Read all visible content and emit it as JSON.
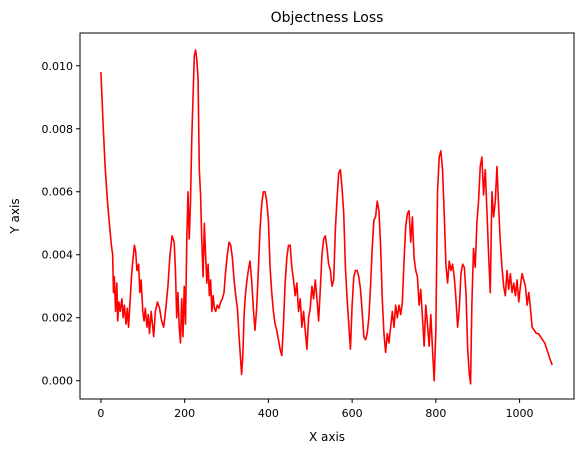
{
  "chart_data": {
    "type": "line",
    "title": "Objectness Loss",
    "xlabel": "X axis",
    "ylabel": "Y axis",
    "xlim": [
      -50,
      1130
    ],
    "ylim": [
      -0.00058,
      0.01104
    ],
    "x_ticks": [
      0,
      200,
      400,
      600,
      800,
      1000
    ],
    "x_tick_labels": [
      "0",
      "200",
      "400",
      "600",
      "800",
      "1000"
    ],
    "y_ticks": [
      0.0,
      0.002,
      0.004,
      0.006,
      0.008,
      0.01
    ],
    "y_tick_labels": [
      "0.000",
      "0.002",
      "0.004",
      "0.006",
      "0.008",
      "0.010"
    ],
    "grid": false,
    "series": [
      {
        "color": "#ff0000",
        "points": [
          [
            0,
            0.0098
          ],
          [
            5,
            0.0082
          ],
          [
            10,
            0.0068
          ],
          [
            15,
            0.0058
          ],
          [
            20,
            0.005
          ],
          [
            25,
            0.0043
          ],
          [
            28,
            0.004
          ],
          [
            30,
            0.0028
          ],
          [
            32,
            0.0033
          ],
          [
            35,
            0.0022
          ],
          [
            38,
            0.0031
          ],
          [
            40,
            0.0019
          ],
          [
            43,
            0.0025
          ],
          [
            46,
            0.0022
          ],
          [
            50,
            0.0026
          ],
          [
            53,
            0.002
          ],
          [
            56,
            0.0024
          ],
          [
            60,
            0.0018
          ],
          [
            63,
            0.0023
          ],
          [
            66,
            0.0017
          ],
          [
            70,
            0.0026
          ],
          [
            73,
            0.0033
          ],
          [
            76,
            0.0038
          ],
          [
            80,
            0.0043
          ],
          [
            83,
            0.0041
          ],
          [
            86,
            0.0035
          ],
          [
            90,
            0.0037
          ],
          [
            93,
            0.0028
          ],
          [
            96,
            0.0032
          ],
          [
            100,
            0.0022
          ],
          [
            103,
            0.0019
          ],
          [
            106,
            0.0023
          ],
          [
            110,
            0.0017
          ],
          [
            113,
            0.0021
          ],
          [
            116,
            0.0015
          ],
          [
            120,
            0.0022
          ],
          [
            123,
            0.0018
          ],
          [
            126,
            0.0014
          ],
          [
            130,
            0.0022
          ],
          [
            135,
            0.0025
          ],
          [
            140,
            0.0023
          ],
          [
            145,
            0.0019
          ],
          [
            150,
            0.0017
          ],
          [
            155,
            0.0023
          ],
          [
            160,
            0.003
          ],
          [
            165,
            0.004
          ],
          [
            170,
            0.0046
          ],
          [
            175,
            0.0044
          ],
          [
            178,
            0.0035
          ],
          [
            181,
            0.002
          ],
          [
            184,
            0.0028
          ],
          [
            187,
            0.0017
          ],
          [
            190,
            0.0012
          ],
          [
            193,
            0.0026
          ],
          [
            196,
            0.0014
          ],
          [
            199,
            0.003
          ],
          [
            202,
            0.0018
          ],
          [
            205,
            0.0044
          ],
          [
            208,
            0.006
          ],
          [
            211,
            0.0045
          ],
          [
            214,
            0.0057
          ],
          [
            217,
            0.0077
          ],
          [
            220,
            0.009
          ],
          [
            223,
            0.0103
          ],
          [
            226,
            0.0105
          ],
          [
            229,
            0.0102
          ],
          [
            232,
            0.0096
          ],
          [
            235,
            0.0067
          ],
          [
            238,
            0.0059
          ],
          [
            241,
            0.0044
          ],
          [
            244,
            0.0033
          ],
          [
            247,
            0.005
          ],
          [
            250,
            0.004
          ],
          [
            253,
            0.0031
          ],
          [
            256,
            0.0037
          ],
          [
            259,
            0.0027
          ],
          [
            262,
            0.0032
          ],
          [
            265,
            0.0022
          ],
          [
            268,
            0.0027
          ],
          [
            271,
            0.0023
          ],
          [
            274,
            0.0022
          ],
          [
            278,
            0.0024
          ],
          [
            282,
            0.0023
          ],
          [
            286,
            0.0025
          ],
          [
            290,
            0.0026
          ],
          [
            294,
            0.0028
          ],
          [
            298,
            0.0035
          ],
          [
            302,
            0.004
          ],
          [
            306,
            0.0044
          ],
          [
            310,
            0.0043
          ],
          [
            314,
            0.0039
          ],
          [
            318,
            0.0032
          ],
          [
            322,
            0.0027
          ],
          [
            326,
            0.0023
          ],
          [
            330,
            0.0014
          ],
          [
            333,
            0.0008
          ],
          [
            336,
            0.0002
          ],
          [
            339,
            0.0008
          ],
          [
            342,
            0.0021
          ],
          [
            345,
            0.0027
          ],
          [
            348,
            0.0031
          ],
          [
            352,
            0.0035
          ],
          [
            356,
            0.0038
          ],
          [
            360,
            0.0032
          ],
          [
            364,
            0.0023
          ],
          [
            368,
            0.0016
          ],
          [
            372,
            0.0023
          ],
          [
            376,
            0.0035
          ],
          [
            380,
            0.0048
          ],
          [
            384,
            0.0056
          ],
          [
            388,
            0.006
          ],
          [
            392,
            0.006
          ],
          [
            396,
            0.0057
          ],
          [
            400,
            0.0051
          ],
          [
            404,
            0.0036
          ],
          [
            408,
            0.0028
          ],
          [
            412,
            0.0022
          ],
          [
            416,
            0.0018
          ],
          [
            420,
            0.0016
          ],
          [
            424,
            0.0013
          ],
          [
            428,
            0.001
          ],
          [
            432,
            0.0008
          ],
          [
            436,
            0.0018
          ],
          [
            440,
            0.0031
          ],
          [
            444,
            0.0039
          ],
          [
            448,
            0.0043
          ],
          [
            452,
            0.0043
          ],
          [
            456,
            0.0036
          ],
          [
            460,
            0.0032
          ],
          [
            464,
            0.0027
          ],
          [
            468,
            0.0031
          ],
          [
            472,
            0.0022
          ],
          [
            476,
            0.0026
          ],
          [
            480,
            0.0017
          ],
          [
            484,
            0.0022
          ],
          [
            488,
            0.0016
          ],
          [
            492,
            0.001
          ],
          [
            496,
            0.002
          ],
          [
            500,
            0.0023
          ],
          [
            504,
            0.003
          ],
          [
            508,
            0.0026
          ],
          [
            512,
            0.0032
          ],
          [
            516,
            0.0026
          ],
          [
            520,
            0.0019
          ],
          [
            524,
            0.0029
          ],
          [
            528,
            0.004
          ],
          [
            532,
            0.0045
          ],
          [
            536,
            0.0046
          ],
          [
            540,
            0.0042
          ],
          [
            544,
            0.0037
          ],
          [
            548,
            0.0035
          ],
          [
            552,
            0.003
          ],
          [
            556,
            0.0032
          ],
          [
            560,
            0.0048
          ],
          [
            564,
            0.0058
          ],
          [
            568,
            0.0066
          ],
          [
            572,
            0.0067
          ],
          [
            576,
            0.0061
          ],
          [
            580,
            0.0053
          ],
          [
            584,
            0.0036
          ],
          [
            588,
            0.0026
          ],
          [
            592,
            0.0018
          ],
          [
            596,
            0.001
          ],
          [
            600,
            0.0024
          ],
          [
            604,
            0.0033
          ],
          [
            608,
            0.0035
          ],
          [
            612,
            0.0035
          ],
          [
            616,
            0.0033
          ],
          [
            620,
            0.0029
          ],
          [
            624,
            0.0022
          ],
          [
            628,
            0.0014
          ],
          [
            632,
            0.0013
          ],
          [
            636,
            0.0015
          ],
          [
            640,
            0.002
          ],
          [
            644,
            0.003
          ],
          [
            648,
            0.0042
          ],
          [
            652,
            0.0051
          ],
          [
            656,
            0.0052
          ],
          [
            660,
            0.0057
          ],
          [
            664,
            0.0054
          ],
          [
            668,
            0.0043
          ],
          [
            672,
            0.0026
          ],
          [
            676,
            0.0015
          ],
          [
            680,
            0.0009
          ],
          [
            684,
            0.0015
          ],
          [
            688,
            0.0012
          ],
          [
            692,
            0.0017
          ],
          [
            696,
            0.0022
          ],
          [
            700,
            0.0017
          ],
          [
            704,
            0.0024
          ],
          [
            708,
            0.002
          ],
          [
            712,
            0.0024
          ],
          [
            716,
            0.0021
          ],
          [
            720,
            0.0025
          ],
          [
            724,
            0.0038
          ],
          [
            728,
            0.0049
          ],
          [
            732,
            0.0053
          ],
          [
            736,
            0.0054
          ],
          [
            740,
            0.0044
          ],
          [
            744,
            0.0052
          ],
          [
            748,
            0.0039
          ],
          [
            752,
            0.0035
          ],
          [
            756,
            0.0033
          ],
          [
            760,
            0.0024
          ],
          [
            764,
            0.0029
          ],
          [
            768,
            0.002
          ],
          [
            772,
            0.0011
          ],
          [
            776,
            0.0024
          ],
          [
            780,
            0.0018
          ],
          [
            784,
            0.0011
          ],
          [
            788,
            0.0021
          ],
          [
            792,
            0.001
          ],
          [
            796,
            0.0
          ],
          [
            800,
            0.0016
          ],
          [
            804,
            0.006
          ],
          [
            808,
            0.0071
          ],
          [
            812,
            0.0073
          ],
          [
            816,
            0.0067
          ],
          [
            820,
            0.0053
          ],
          [
            824,
            0.0037
          ],
          [
            828,
            0.0031
          ],
          [
            832,
            0.0038
          ],
          [
            836,
            0.0035
          ],
          [
            840,
            0.0037
          ],
          [
            844,
            0.0033
          ],
          [
            848,
            0.0026
          ],
          [
            852,
            0.0017
          ],
          [
            856,
            0.0023
          ],
          [
            860,
            0.0034
          ],
          [
            864,
            0.0037
          ],
          [
            868,
            0.0036
          ],
          [
            872,
            0.0028
          ],
          [
            876,
            0.001
          ],
          [
            880,
            0.0002
          ],
          [
            883,
            -0.0001
          ],
          [
            886,
            0.0024
          ],
          [
            890,
            0.0042
          ],
          [
            894,
            0.0036
          ],
          [
            898,
            0.005
          ],
          [
            902,
            0.0057
          ],
          [
            906,
            0.0068
          ],
          [
            910,
            0.0071
          ],
          [
            914,
            0.0059
          ],
          [
            918,
            0.0067
          ],
          [
            922,
            0.0054
          ],
          [
            926,
            0.004
          ],
          [
            930,
            0.0028
          ],
          [
            934,
            0.006
          ],
          [
            938,
            0.0052
          ],
          [
            942,
            0.0057
          ],
          [
            946,
            0.0068
          ],
          [
            950,
            0.0055
          ],
          [
            954,
            0.0044
          ],
          [
            958,
            0.0036
          ],
          [
            962,
            0.003
          ],
          [
            966,
            0.0027
          ],
          [
            970,
            0.0035
          ],
          [
            974,
            0.0029
          ],
          [
            978,
            0.0034
          ],
          [
            982,
            0.0028
          ],
          [
            986,
            0.0031
          ],
          [
            990,
            0.0027
          ],
          [
            994,
            0.0032
          ],
          [
            998,
            0.0025
          ],
          [
            1002,
            0.003
          ],
          [
            1006,
            0.0034
          ],
          [
            1010,
            0.0032
          ],
          [
            1014,
            0.003
          ],
          [
            1018,
            0.0024
          ],
          [
            1022,
            0.0028
          ],
          [
            1026,
            0.0023
          ],
          [
            1030,
            0.0017
          ],
          [
            1035,
            0.0016
          ],
          [
            1040,
            0.0015
          ],
          [
            1045,
            0.0015
          ],
          [
            1050,
            0.0014
          ],
          [
            1055,
            0.0013
          ],
          [
            1060,
            0.0012
          ],
          [
            1065,
            0.001
          ],
          [
            1070,
            0.0008
          ],
          [
            1075,
            0.0006
          ],
          [
            1078,
            0.0005
          ]
        ]
      }
    ]
  }
}
